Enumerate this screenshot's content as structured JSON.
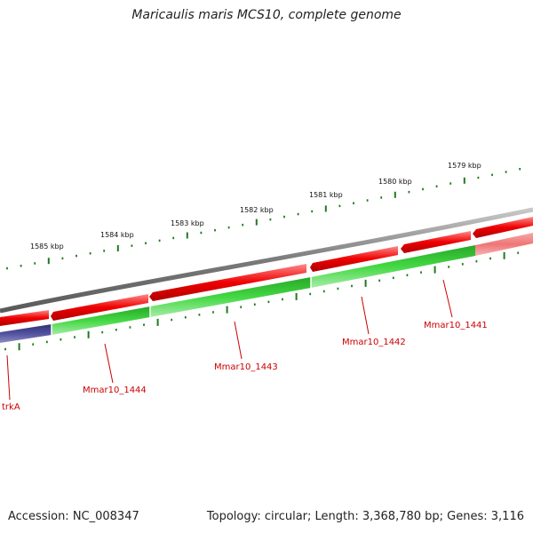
{
  "title": "Maricaulis maris MCS10, complete genome",
  "footer": {
    "accession": "Accession: NC_008347",
    "summary": "Topology: circular; Length: 3,368,780 bp; Genes: 3,116"
  },
  "scale_labels": [
    "1585 kbp",
    "1584 kbp",
    "1583 kbp",
    "1582 kbp",
    "1581 kbp",
    "1580 kbp",
    "1579 kbp"
  ],
  "gene_labels": [
    "trkA",
    "Mmar10_1444",
    "Mmar10_1443",
    "Mmar10_1442",
    "Mmar10_1441"
  ],
  "colors": {
    "backbone": "#7a7a7a",
    "cds_forward": "#e60000",
    "cds_reverse_green": "#33c433",
    "cds_blue": "#3f3f8f",
    "ticks": "#1f7a1f",
    "label": "#cc0000"
  }
}
